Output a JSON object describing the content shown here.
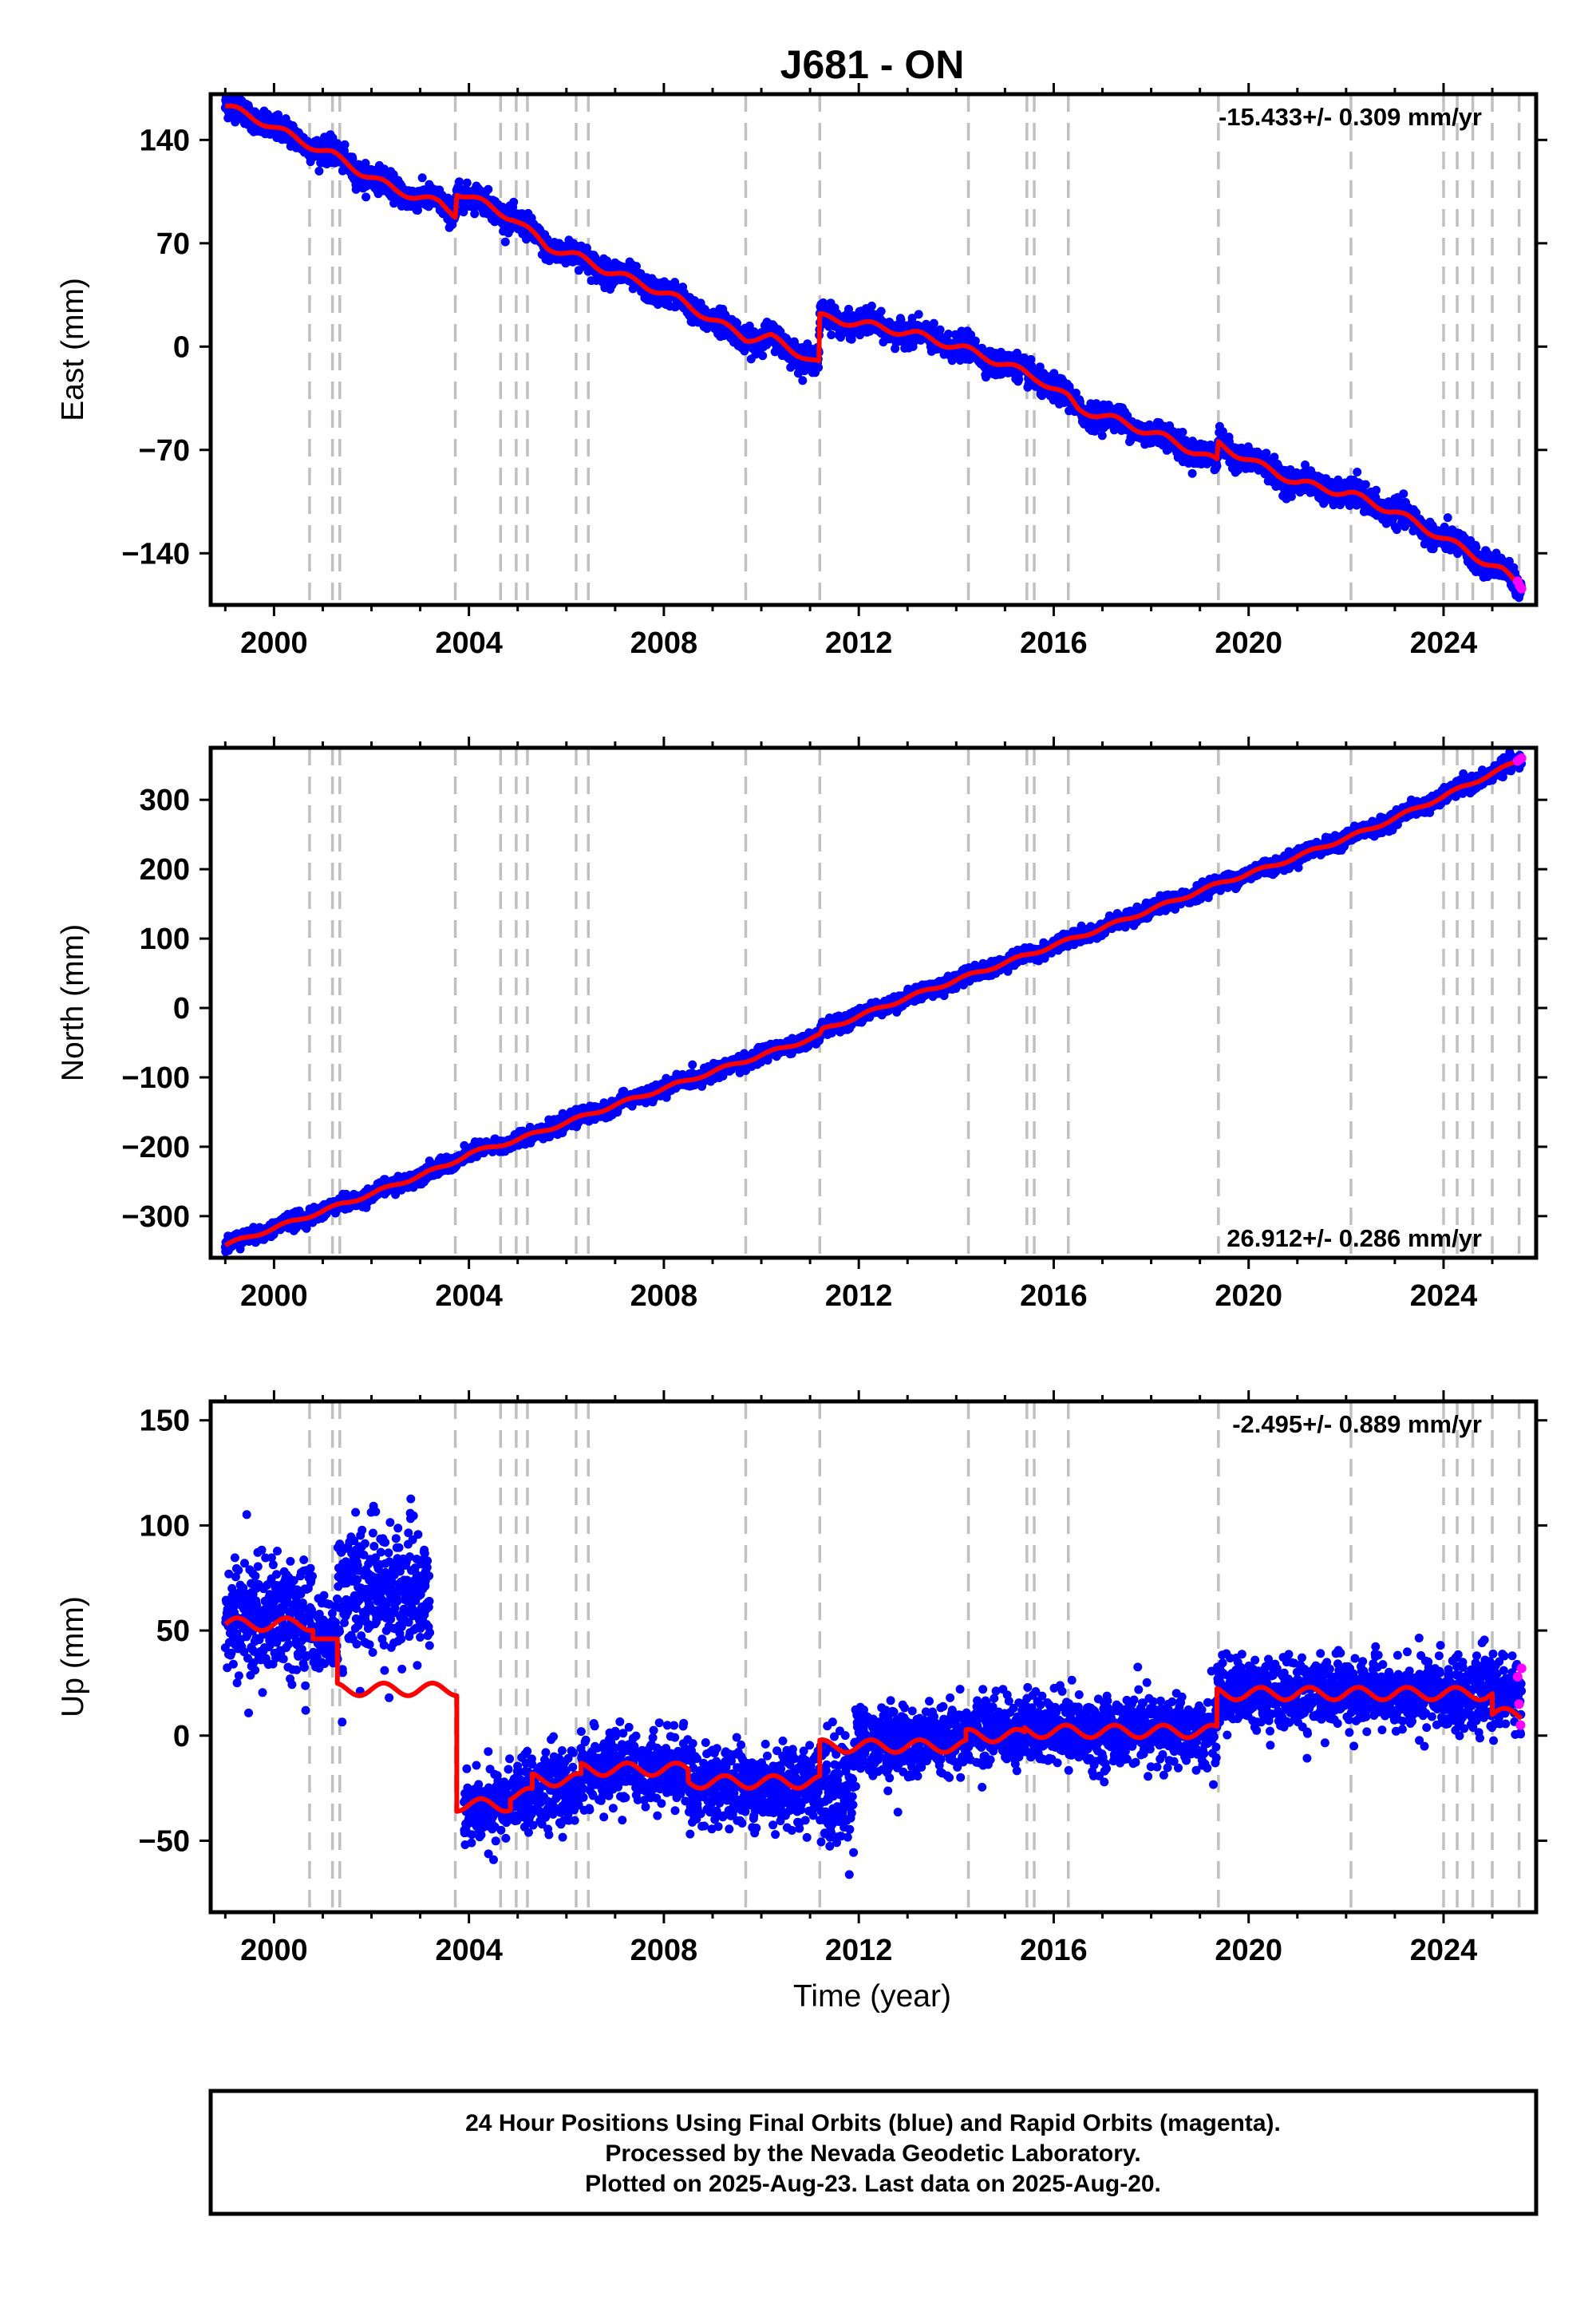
{
  "title": "J681 - ON",
  "xlabel": "Time (year)",
  "footer": {
    "line1": "24 Hour Positions Using Final Orbits (blue) and Rapid Orbits (magenta).",
    "line2": "Processed by the Nevada Geodetic Laboratory.",
    "line3": "Plotted on 2025-Aug-23. Last data on 2025-Aug-20."
  },
  "colors": {
    "final": "#0000ff",
    "rapid": "#ff00ff",
    "model": "#ff0000",
    "step_lines": "#c0c0c0"
  },
  "chart_data": [
    {
      "type": "scatter",
      "panel": "east",
      "ylabel": "East (mm)",
      "rate_text": "-15.433+/- 0.309 mm/yr",
      "rate_position": "top-right",
      "xlim": [
        1998.7,
        2025.9
      ],
      "ylim": [
        -175,
        171
      ],
      "x_ticks": [
        2000,
        2004,
        2008,
        2012,
        2016,
        2020,
        2024
      ],
      "y_ticks": [
        140,
        70,
        0,
        -70,
        -140
      ],
      "y_tick_labels": [
        "140",
        "70",
        "0",
        "−70",
        "−140"
      ],
      "steps": [],
      "model_breakpoints": [
        [
          1999.0,
          163
        ],
        [
          1999.8,
          152
        ],
        [
          2000.5,
          140
        ],
        [
          2001.2,
          130
        ],
        [
          2001.8,
          118
        ],
        [
          2002.5,
          106
        ],
        [
          2003.4,
          97
        ],
        [
          2003.72,
          90
        ],
        [
          2003.75,
          105
        ],
        [
          2004.3,
          97
        ],
        [
          2004.9,
          87
        ],
        [
          2005.6,
          68
        ],
        [
          2006.3,
          60
        ],
        [
          2006.8,
          52
        ],
        [
          2007.6,
          42
        ],
        [
          2008.3,
          32
        ],
        [
          2009.0,
          18
        ],
        [
          2009.68,
          6
        ],
        [
          2010.2,
          6
        ],
        [
          2011.18,
          -12
        ],
        [
          2011.2,
          20
        ],
        [
          2012.3,
          14
        ],
        [
          2013.2,
          8
        ],
        [
          2014.2,
          -2
        ],
        [
          2015.0,
          -12
        ],
        [
          2015.7,
          -22
        ],
        [
          2016.3,
          -35
        ],
        [
          2016.5,
          -42
        ],
        [
          2017.3,
          -50
        ],
        [
          2018.3,
          -62
        ],
        [
          2019.35,
          -78
        ],
        [
          2019.38,
          -66
        ],
        [
          2020.2,
          -80
        ],
        [
          2021.0,
          -92
        ],
        [
          2022.1,
          -100
        ],
        [
          2023.0,
          -112
        ],
        [
          2023.9,
          -128
        ],
        [
          2024.6,
          -141
        ],
        [
          2025.2,
          -152
        ],
        [
          2025.6,
          -163
        ]
      ],
      "scatter_sigma": 4,
      "rapid_points": [
        [
          2025.52,
          -159
        ],
        [
          2025.56,
          -162
        ],
        [
          2025.6,
          -164
        ]
      ]
    },
    {
      "type": "scatter",
      "panel": "north",
      "ylabel": "North (mm)",
      "rate_text": "26.912+/- 0.286 mm/yr",
      "rate_position": "bottom-right",
      "xlim": [
        1998.7,
        2025.9
      ],
      "ylim": [
        -360,
        375
      ],
      "x_ticks": [
        2000,
        2004,
        2008,
        2012,
        2016,
        2020,
        2024
      ],
      "y_ticks": [
        300,
        200,
        100,
        0,
        -100,
        -200,
        -300
      ],
      "y_tick_labels": [
        "300",
        "200",
        "100",
        "0",
        "−100",
        "−200",
        "−300"
      ],
      "model_breakpoints": [
        [
          1999.0,
          -342
        ],
        [
          2000.5,
          -305
        ],
        [
          2002.0,
          -268
        ],
        [
          2003.5,
          -228
        ],
        [
          2004.0,
          -210
        ],
        [
          2005.0,
          -190
        ],
        [
          2007.0,
          -140
        ],
        [
          2009.5,
          -80
        ],
        [
          2011.2,
          -40
        ],
        [
          2011.25,
          -32
        ],
        [
          2013.0,
          15
        ],
        [
          2015.0,
          65
        ],
        [
          2017.0,
          115
        ],
        [
          2019.5,
          182
        ],
        [
          2020.5,
          205
        ],
        [
          2022.5,
          258
        ],
        [
          2024.0,
          305
        ],
        [
          2025.6,
          358
        ]
      ],
      "scatter_sigma": 5,
      "rapid_points": [
        [
          2025.52,
          356
        ],
        [
          2025.56,
          358
        ],
        [
          2025.6,
          360
        ]
      ]
    },
    {
      "type": "scatter",
      "panel": "up",
      "ylabel": "Up (mm)",
      "rate_text": "-2.495+/- 0.889 mm/yr",
      "rate_position": "top-right",
      "xlim": [
        1998.7,
        2025.9
      ],
      "ylim": [
        -84,
        159
      ],
      "x_ticks": [
        2000,
        2004,
        2008,
        2012,
        2016,
        2020,
        2024
      ],
      "y_ticks": [
        150,
        100,
        50,
        0,
        -50
      ],
      "y_tick_labels": [
        "150",
        "100",
        "50",
        "0",
        "−50"
      ],
      "model_segments": [
        {
          "x0": 1999.0,
          "x1": 2000.8,
          "level": 53,
          "amp": 3
        },
        {
          "x0": 2000.8,
          "x1": 2001.3,
          "level": 46,
          "amp": 0
        },
        {
          "x0": 2001.3,
          "x1": 2003.75,
          "level": 22,
          "amp": 3
        },
        {
          "x0": 2003.75,
          "x1": 2004.85,
          "level": -33,
          "amp": 3
        },
        {
          "x0": 2004.85,
          "x1": 2005.3,
          "level": -28,
          "amp": 3
        },
        {
          "x0": 2005.3,
          "x1": 2006.3,
          "level": -21,
          "amp": 3
        },
        {
          "x0": 2006.3,
          "x1": 2008.5,
          "level": -16,
          "amp": 3
        },
        {
          "x0": 2008.5,
          "x1": 2011.2,
          "level": -22,
          "amp": 3
        },
        {
          "x0": 2011.2,
          "x1": 2014.2,
          "level": -5,
          "amp": 3
        },
        {
          "x0": 2014.2,
          "x1": 2015.4,
          "level": 0,
          "amp": 3
        },
        {
          "x0": 2015.4,
          "x1": 2019.35,
          "level": 2,
          "amp": 3
        },
        {
          "x0": 2019.35,
          "x1": 2022.1,
          "level": 20,
          "amp": 3
        },
        {
          "x0": 2022.1,
          "x1": 2025.0,
          "level": 20,
          "amp": 3
        },
        {
          "x0": 2025.0,
          "x1": 2025.6,
          "level": 10,
          "amp": 3
        }
      ],
      "data_segments": [
        {
          "x0": 1999.0,
          "x1": 2000.8,
          "mean": 55,
          "sigma": 14
        },
        {
          "x0": 2000.8,
          "x1": 2001.3,
          "mean": 48,
          "sigma": 8
        },
        {
          "x0": 2001.3,
          "x1": 2003.2,
          "mean": 68,
          "sigma": 16
        },
        {
          "x0": 2003.9,
          "x1": 2004.85,
          "mean": -34,
          "sigma": 8
        },
        {
          "x0": 2004.85,
          "x1": 2006.3,
          "mean": -26,
          "sigma": 8
        },
        {
          "x0": 2006.3,
          "x1": 2008.5,
          "mean": -16,
          "sigma": 8
        },
        {
          "x0": 2008.5,
          "x1": 2011.2,
          "mean": -24,
          "sigma": 9
        },
        {
          "x0": 2011.2,
          "x1": 2011.9,
          "mean": -25,
          "sigma": 14
        },
        {
          "x0": 2011.9,
          "x1": 2014.2,
          "mean": -3,
          "sigma": 8
        },
        {
          "x0": 2014.2,
          "x1": 2019.35,
          "mean": 2,
          "sigma": 8
        },
        {
          "x0": 2019.35,
          "x1": 2025.6,
          "mean": 20,
          "sigma": 8
        }
      ],
      "rapid_points": [
        [
          2025.52,
          28
        ],
        [
          2025.55,
          15
        ],
        [
          2025.58,
          5
        ],
        [
          2025.6,
          32
        ]
      ]
    }
  ],
  "step_lines": [
    2000.73,
    2001.2,
    2001.35,
    2003.72,
    2004.65,
    2004.97,
    2005.2,
    2006.2,
    2006.45,
    2009.68,
    2011.2,
    2014.25,
    2015.45,
    2015.6,
    2016.3,
    2019.38,
    2022.1,
    2024.0,
    2024.28,
    2024.6,
    2025.0,
    2025.55
  ]
}
